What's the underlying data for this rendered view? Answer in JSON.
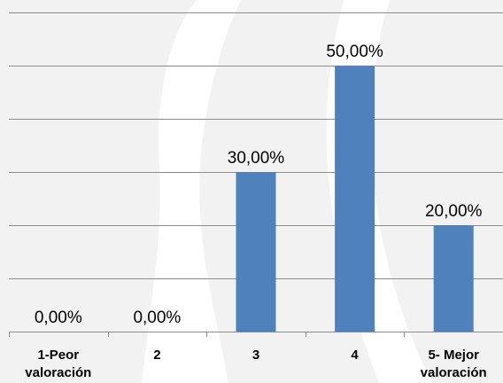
{
  "chart_data": {
    "type": "bar",
    "categories": [
      [
        "1-Peor",
        "valoración"
      ],
      [
        "2"
      ],
      [
        "3"
      ],
      [
        "4"
      ],
      [
        "5- Mejor",
        "valoración"
      ]
    ],
    "values": [
      0,
      0,
      30,
      50,
      20
    ],
    "data_labels": [
      "0,00%",
      "0,00%",
      "30,00%",
      "50,00%",
      "20,00%"
    ],
    "unit": "%",
    "ylim": [
      0,
      60
    ],
    "gridlines": [
      0,
      10,
      20,
      30,
      40,
      50,
      60
    ],
    "grid": true,
    "legend": "none",
    "bar_color": "#4f81bd",
    "gridline_color": "#8c8c8c",
    "background_color": "#f2f2f2",
    "watermark_color": "#ffffff"
  }
}
